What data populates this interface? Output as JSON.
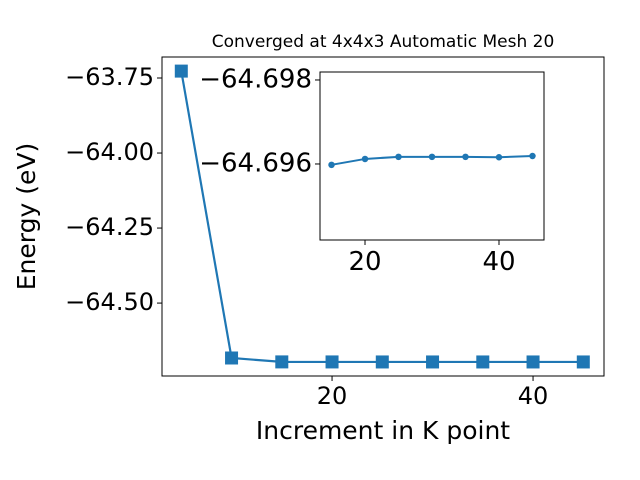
{
  "chart_data": [
    {
      "type": "line",
      "title": "Converged at 4x4x3 Automatic Mesh 20",
      "xlabel": "Increment in K point",
      "ylabel": "Energy (eV)",
      "x": [
        5,
        10,
        15,
        20,
        25,
        30,
        35,
        40,
        45
      ],
      "series": [
        {
          "color": "#1f77b4",
          "marker": "square",
          "values": [
            -63.727,
            -64.683,
            -64.696,
            -64.6961,
            -64.6962,
            -64.6962,
            -64.6962,
            -64.6962,
            -64.6962
          ]
        }
      ],
      "xlim": [
        3.08,
        47.06
      ],
      "ylim": [
        -64.743,
        -63.68
      ],
      "xticks": [
        20,
        40
      ],
      "yticks": [
        {
          "value": -63.75,
          "label": "−63.75"
        },
        {
          "value": -64.0,
          "label": "−64.00"
        },
        {
          "value": -64.25,
          "label": "−64.25"
        },
        {
          "value": -64.5,
          "label": "−64.50"
        }
      ]
    },
    {
      "type": "line",
      "x": [
        15,
        20,
        25,
        30,
        35,
        40,
        45
      ],
      "series": [
        {
          "color": "#1f77b4",
          "marker": "circle",
          "values": [
            -64.69598,
            -64.69612,
            -64.69617,
            -64.69617,
            -64.69617,
            -64.69616,
            -64.69619
          ]
        }
      ],
      "xlim": [
        13.28,
        46.72
      ],
      "ylim": [
        -64.69419,
        -64.69819
      ],
      "xticks": [
        20,
        40
      ],
      "yticks": [
        {
          "value": -64.698,
          "label": "−64.698"
        },
        {
          "value": -64.696,
          "label": "−64.696"
        }
      ]
    }
  ]
}
